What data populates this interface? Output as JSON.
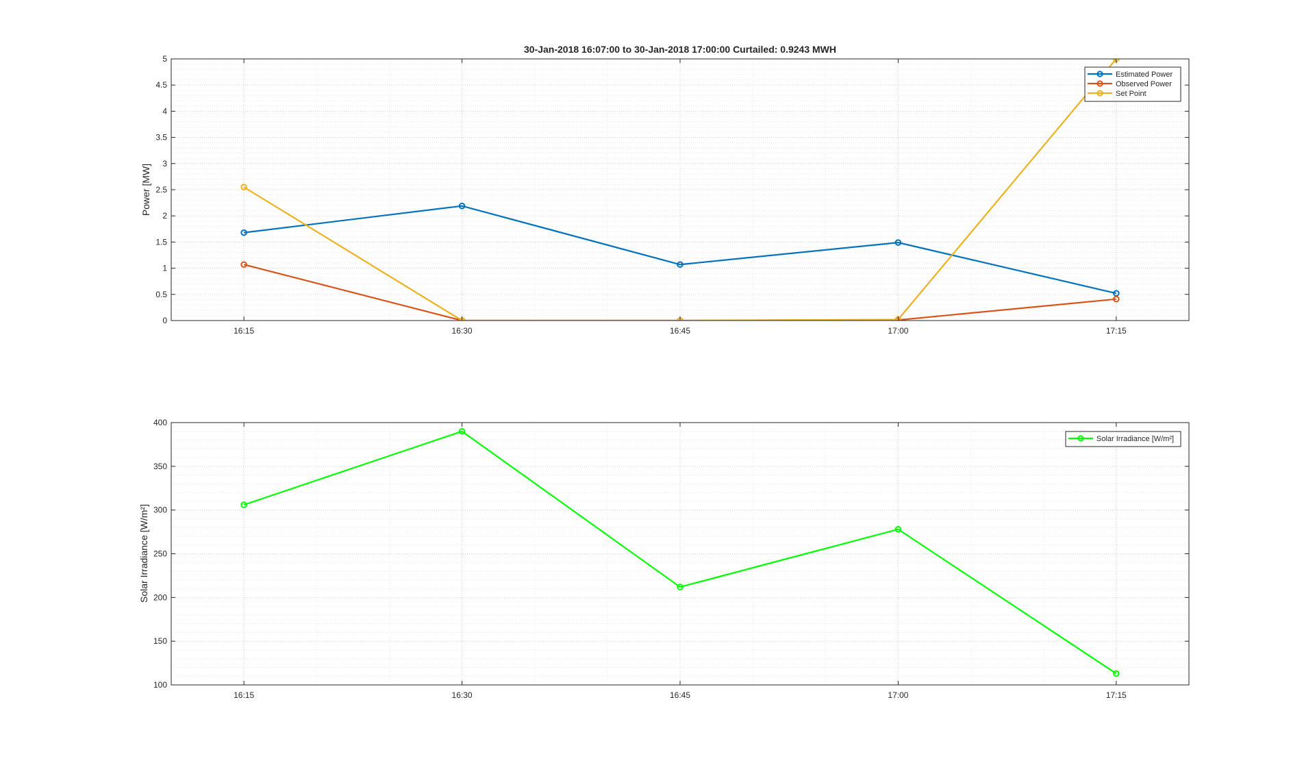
{
  "chart_data": [
    {
      "type": "line",
      "title": "30-Jan-2018 16:07:00 to 30-Jan-2018 17:00:00 Curtailed: 0.9243 MWH",
      "xlabel": "",
      "ylabel": "Power [MW]",
      "x": [
        "16:15",
        "16:30",
        "16:45",
        "17:00",
        "17:15"
      ],
      "xlim": [
        "16:10",
        "17:20"
      ],
      "ylim": [
        0,
        5
      ],
      "yticks": [
        "0",
        "0.5",
        "1",
        "1.5",
        "2",
        "2.5",
        "3",
        "3.5",
        "4",
        "4.5",
        "5"
      ],
      "grid": true,
      "minor_grid": true,
      "legend_position": "top-right",
      "series": [
        {
          "name": "Estimated Power",
          "color": "#0072BD",
          "values": [
            1.68,
            2.19,
            1.07,
            1.49,
            0.52
          ]
        },
        {
          "name": "Observed Power",
          "color": "#D95319",
          "values": [
            1.07,
            0.0,
            0.0,
            0.01,
            0.41
          ]
        },
        {
          "name": "Set Point",
          "color": "#EDB120",
          "values": [
            2.55,
            0.0,
            0.0,
            0.02,
            5.0
          ]
        }
      ]
    },
    {
      "type": "line",
      "title": "",
      "xlabel": "",
      "ylabel": "Solar Irradiance [W/m²]",
      "x": [
        "16:15",
        "16:30",
        "16:45",
        "17:00",
        "17:15"
      ],
      "xlim": [
        "16:10",
        "17:20"
      ],
      "ylim": [
        100,
        400
      ],
      "yticks": [
        "100",
        "150",
        "200",
        "250",
        "300",
        "350",
        "400"
      ],
      "grid": true,
      "minor_grid": true,
      "legend_position": "top-right",
      "series": [
        {
          "name": "Solar Irradiance [W/m²]",
          "color": "#00FF00",
          "values": [
            306,
            390,
            212,
            278,
            113
          ]
        }
      ]
    }
  ]
}
